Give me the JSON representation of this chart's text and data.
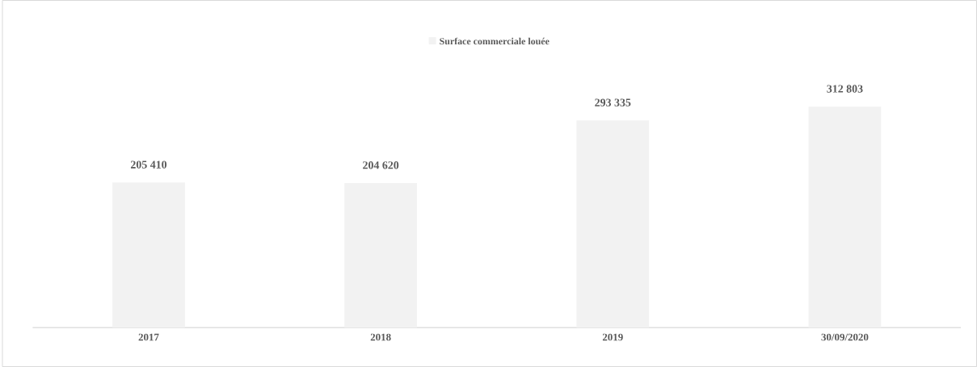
{
  "chart_data": {
    "type": "bar",
    "categories": [
      "2017",
      "2018",
      "2019",
      "30/09/2020"
    ],
    "legend": "top",
    "tick_labels": "x",
    "series": [
      {
        "name": "Surface commerciale louée",
        "color": "#f2f2f2",
        "values": [
          205410,
          204620,
          293335,
          312803
        ],
        "value_labels": [
          "205 410",
          "204 620",
          "293 335",
          "312 803"
        ]
      }
    ]
  }
}
